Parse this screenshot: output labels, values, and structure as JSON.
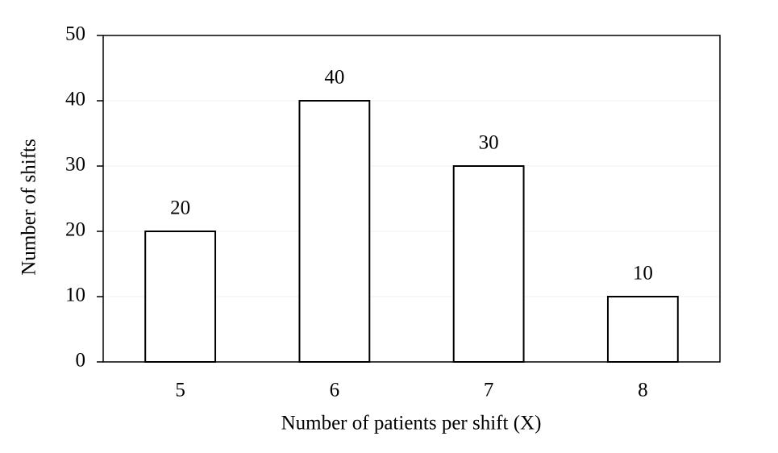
{
  "chart_data": {
    "type": "bar",
    "x_label": "Number of patients per shift (X)",
    "y_label": "Number of shifts",
    "categories": [
      "5",
      "6",
      "7",
      "8"
    ],
    "values": [
      20,
      40,
      30,
      10
    ],
    "color": "#ffffff",
    "ylim": [
      0,
      50
    ],
    "yticks": [
      0,
      10,
      20,
      30,
      40,
      50
    ],
    "grid": true
  }
}
